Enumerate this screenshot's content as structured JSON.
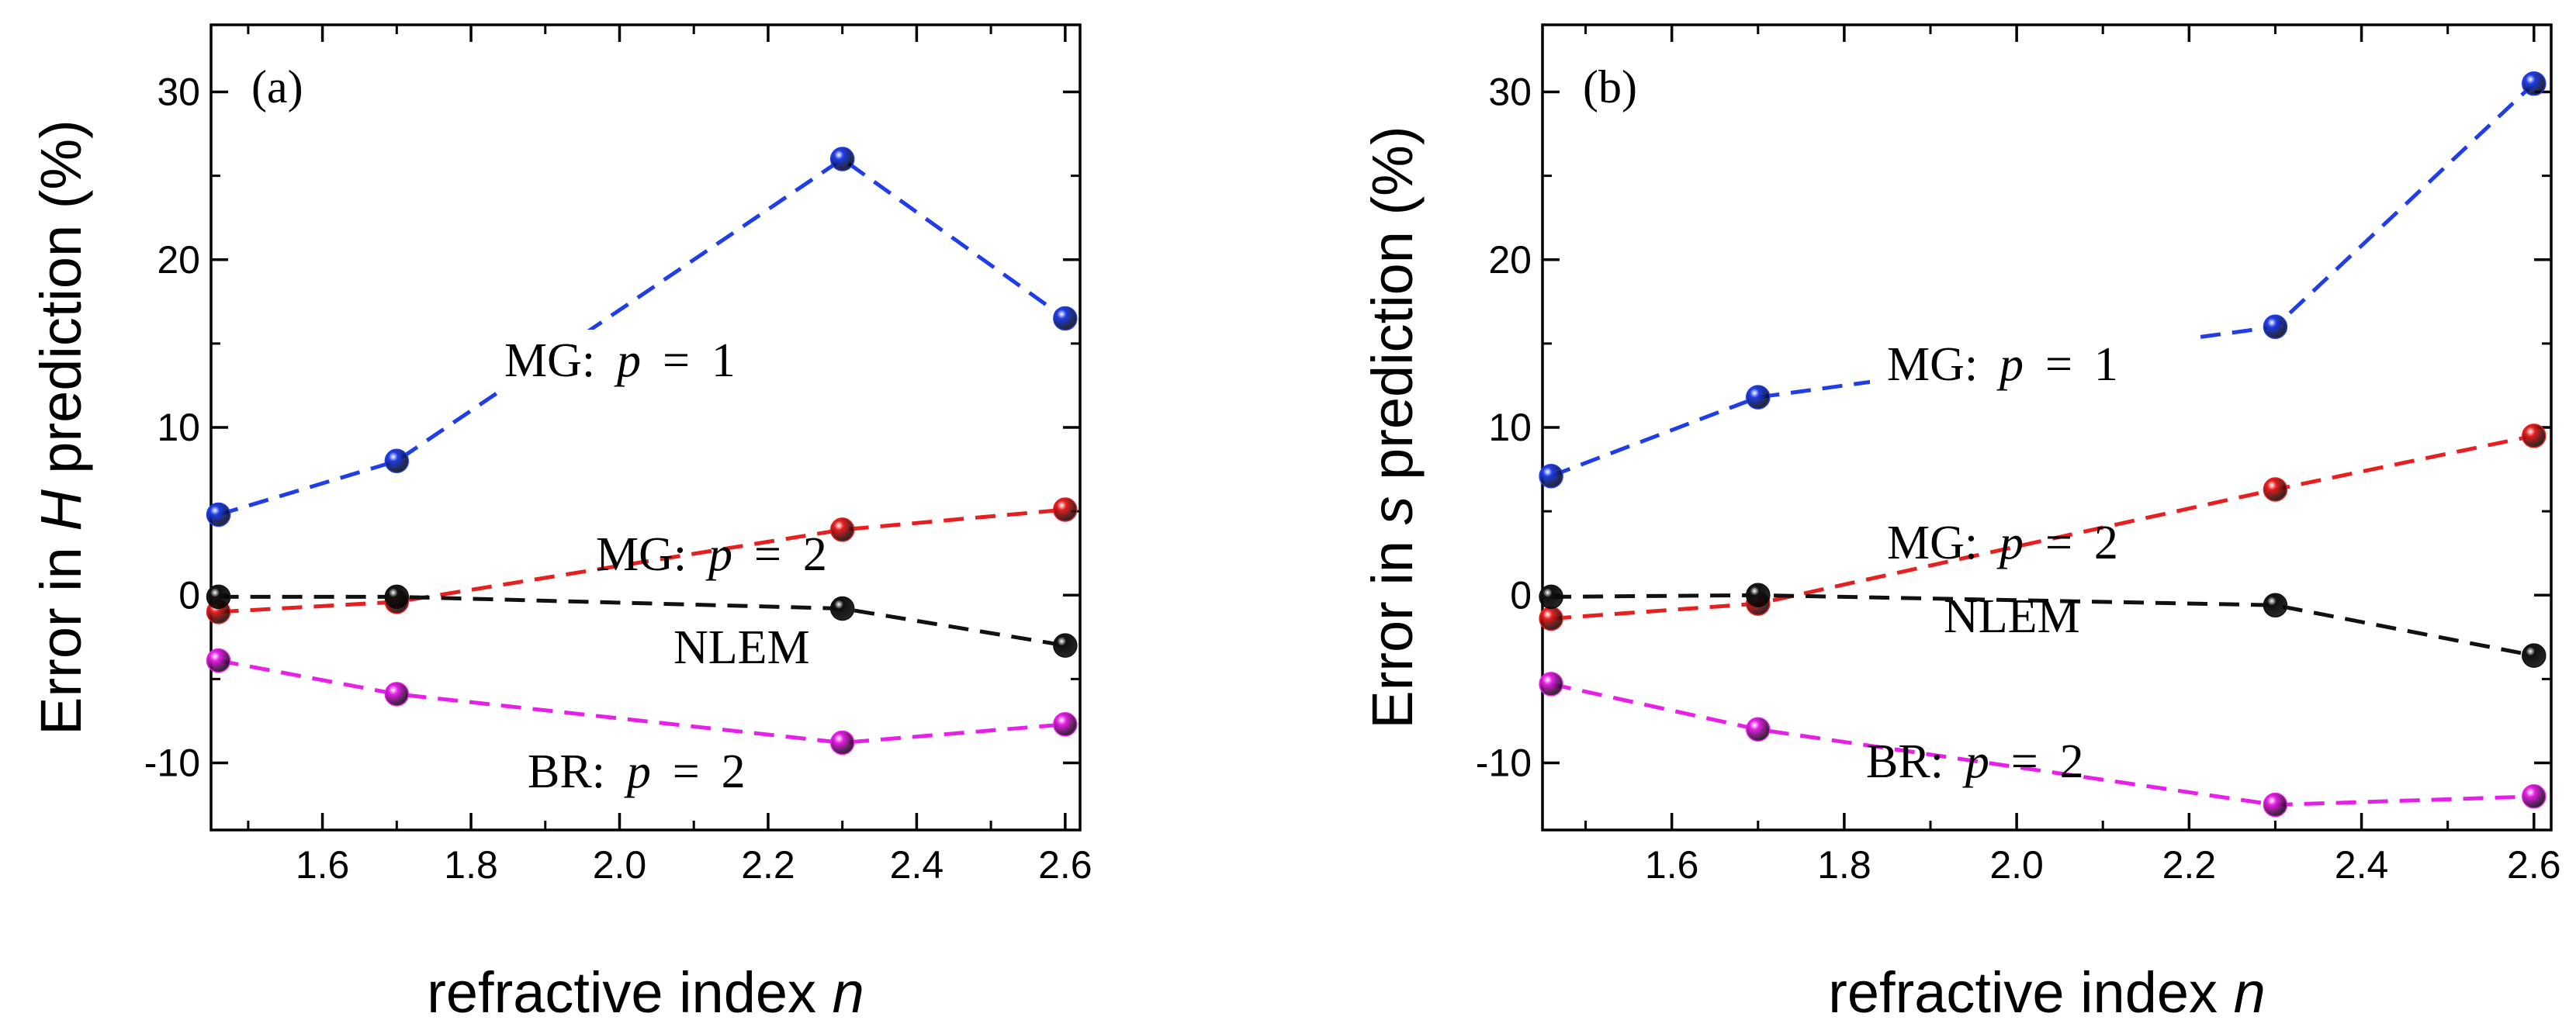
{
  "chart_data": [
    {
      "type": "line",
      "panel_label": "(a)",
      "xlabel": "refractive index n",
      "ylabel": "Error in H prediction (%)",
      "xlim": [
        1.45,
        2.62
      ],
      "ylim": [
        -14,
        34
      ],
      "xticks": [
        1.6,
        1.8,
        2.0,
        2.2,
        2.4,
        2.6
      ],
      "yticks": [
        -10,
        0,
        10,
        20,
        30
      ],
      "x": [
        1.46,
        1.7,
        2.3,
        2.6
      ],
      "series": [
        {
          "label": "MG: p = 1",
          "color": "#1f3de8",
          "values": [
            4.8,
            8.0,
            26.0,
            16.5
          ]
        },
        {
          "label": "MG: p = 2",
          "color": "#e81f1f",
          "values": [
            -1.0,
            -0.4,
            3.9,
            5.1
          ]
        },
        {
          "label": "NLEM",
          "color": "#111111",
          "values": [
            -0.1,
            -0.1,
            -0.8,
            -3.0
          ]
        },
        {
          "label": "BR: p = 2",
          "color": "#e81fe8",
          "values": [
            -3.9,
            -5.9,
            -8.8,
            -7.7
          ]
        }
      ]
    },
    {
      "type": "line",
      "panel_label": "(b)",
      "xlabel": "refractive index n",
      "ylabel": "Error in s prediction (%)",
      "xlim": [
        1.45,
        2.62
      ],
      "ylim": [
        -14,
        34
      ],
      "xticks": [
        1.6,
        1.8,
        2.0,
        2.2,
        2.4,
        2.6
      ],
      "yticks": [
        -10,
        0,
        10,
        20,
        30
      ],
      "x": [
        1.46,
        1.7,
        2.3,
        2.6
      ],
      "series": [
        {
          "label": "MG: p = 1",
          "color": "#1f3de8",
          "values": [
            7.1,
            11.8,
            16.0,
            30.5
          ]
        },
        {
          "label": "MG: p = 2",
          "color": "#e81f1f",
          "values": [
            -1.4,
            -0.5,
            6.3,
            9.5
          ]
        },
        {
          "label": "NLEM",
          "color": "#111111",
          "values": [
            -0.1,
            0.0,
            -0.6,
            -3.6
          ]
        },
        {
          "label": "BR: p = 2",
          "color": "#e81fe8",
          "values": [
            -5.3,
            -8.0,
            -12.5,
            -12.0
          ]
        }
      ]
    }
  ]
}
